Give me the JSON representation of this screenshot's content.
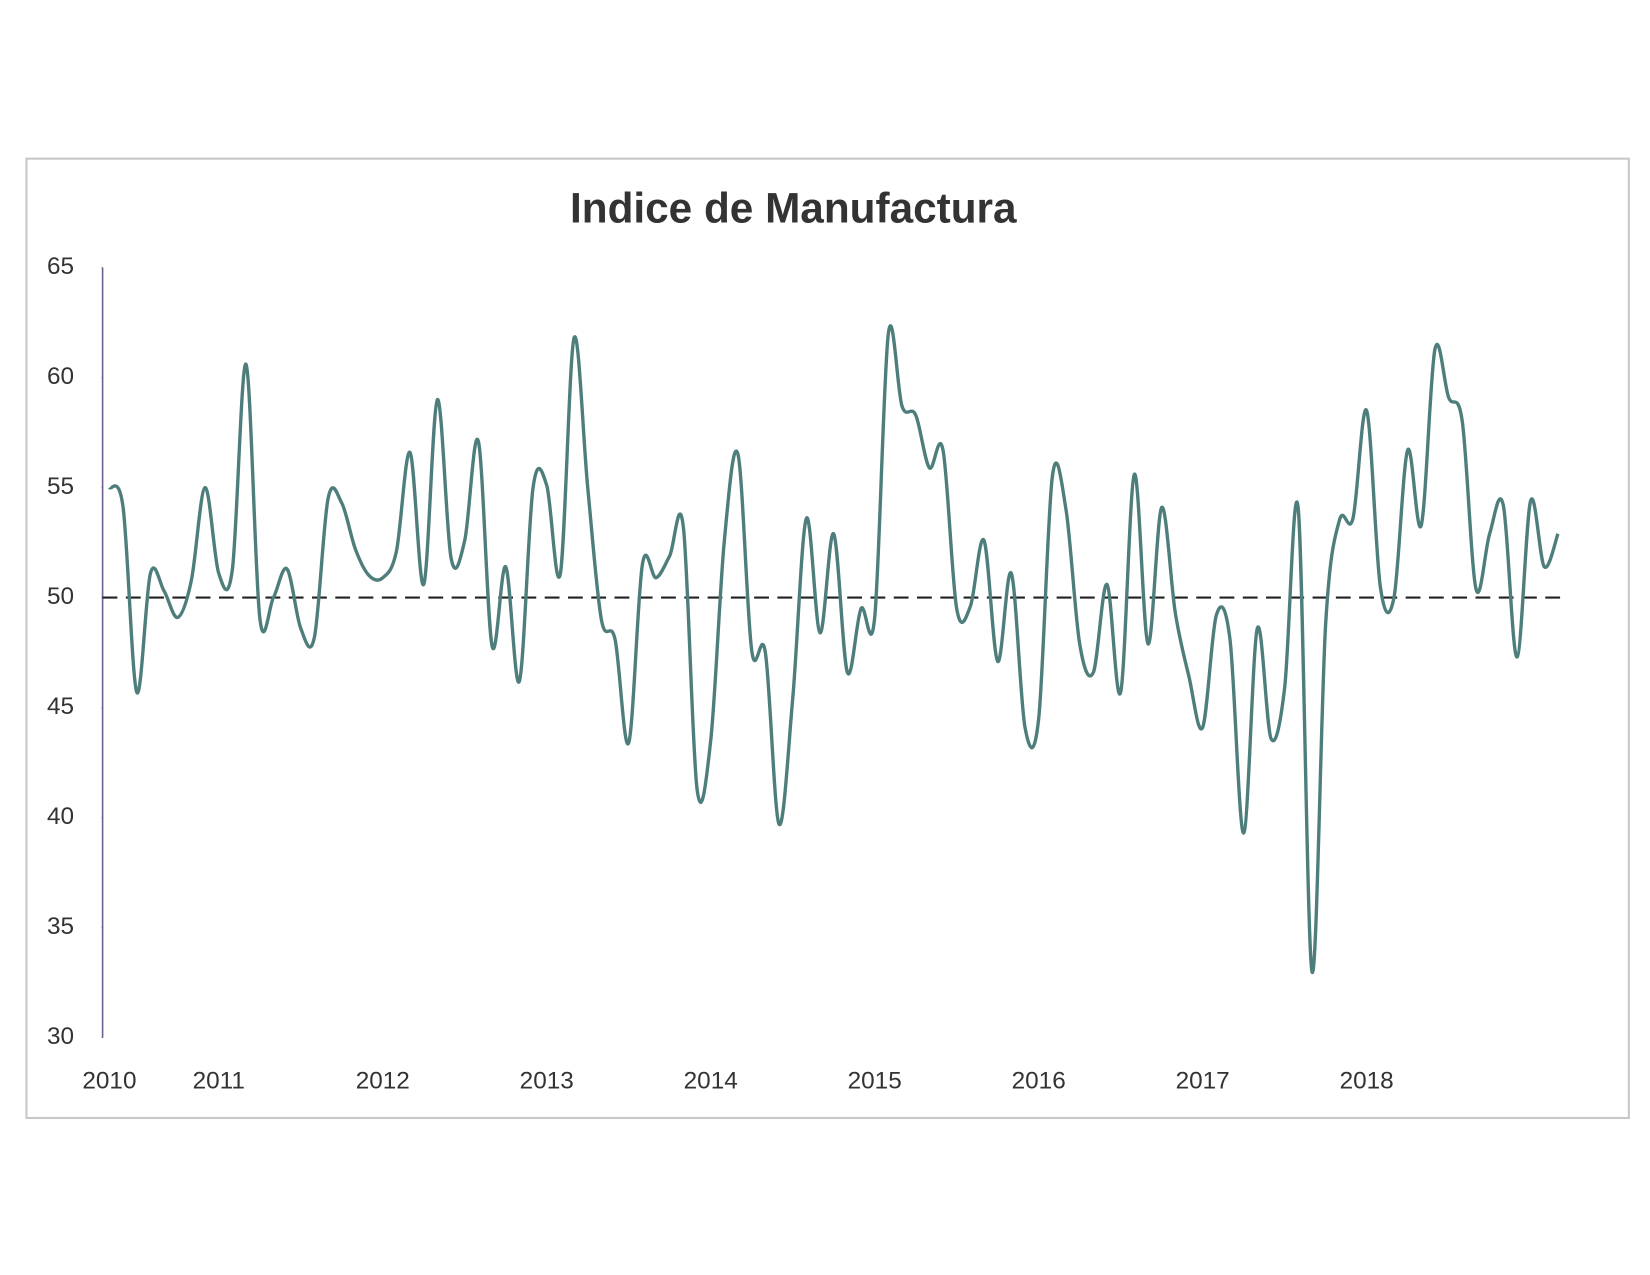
{
  "chart_data": {
    "type": "line",
    "title": "Indice de Manufactura",
    "categories": [
      "2010",
      null,
      null,
      null,
      null,
      null,
      null,
      null,
      "2011",
      null,
      null,
      null,
      null,
      null,
      null,
      null,
      null,
      null,
      null,
      null,
      "2012",
      null,
      null,
      null,
      null,
      null,
      null,
      null,
      null,
      null,
      null,
      null,
      "2013",
      null,
      null,
      null,
      null,
      null,
      null,
      null,
      null,
      null,
      null,
      null,
      "2014",
      null,
      null,
      null,
      null,
      null,
      null,
      null,
      null,
      null,
      null,
      null,
      "2015",
      null,
      null,
      null,
      null,
      null,
      null,
      null,
      null,
      null,
      null,
      null,
      "2016",
      null,
      null,
      null,
      null,
      null,
      null,
      null,
      null,
      null,
      null,
      null,
      "2017",
      null,
      null,
      null,
      null,
      null,
      null,
      null,
      null,
      null,
      null,
      null,
      "2018",
      null,
      null,
      null,
      null,
      null,
      null,
      null,
      null,
      null,
      null,
      null,
      null,
      null,
      null
    ],
    "values": [
      55.0,
      54.1,
      45.7,
      51.1,
      50.3,
      49.1,
      50.8,
      55.0,
      51.1,
      51.3,
      60.6,
      49.1,
      50.0,
      51.3,
      48.6,
      48.2,
      54.5,
      54.3,
      52.2,
      51.0,
      50.9,
      52.1,
      56.6,
      50.6,
      59.0,
      51.8,
      52.6,
      57.1,
      47.8,
      51.4,
      46.2,
      55.0,
      55.1,
      51.1,
      61.8,
      55.0,
      49.0,
      48.1,
      43.4,
      51.5,
      50.9,
      51.9,
      53.2,
      41.3,
      43.5,
      52.6,
      56.5,
      47.6,
      47.5,
      39.7,
      45.4,
      53.6,
      48.4,
      52.9,
      46.6,
      49.5,
      49.1,
      62.0,
      58.7,
      58.3,
      55.9,
      56.7,
      49.5,
      49.6,
      52.6,
      47.1,
      51.1,
      44.1,
      44.5,
      55.5,
      54.0,
      47.9,
      46.6,
      50.6,
      45.7,
      55.6,
      47.9,
      54.1,
      49.3,
      46.4,
      44.1,
      49.2,
      48.1,
      39.3,
      48.6,
      43.6,
      45.9,
      54.0,
      33.0,
      48.8,
      53.5,
      53.6,
      58.5,
      50.5,
      50.0,
      56.7,
      53.3,
      61.3,
      59.1,
      58.0,
      50.4,
      52.9,
      54.2,
      47.3,
      54.4,
      51.4,
      52.9
    ],
    "color": "#4e7e7c",
    "reference_line": 50,
    "ylim": [
      30,
      65
    ],
    "yticks": [
      30,
      35,
      40,
      45,
      50,
      55,
      60,
      65
    ],
    "grid": false
  }
}
